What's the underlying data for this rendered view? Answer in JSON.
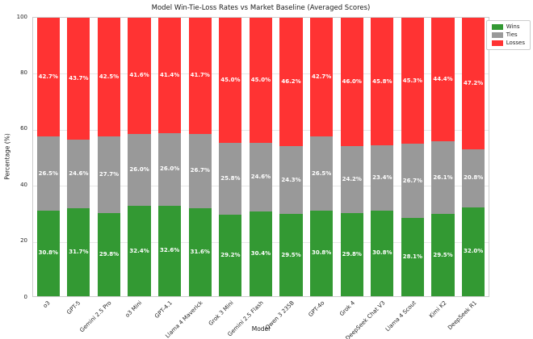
{
  "title": "Model Win-Tie-Loss Rates vs Market Baseline (Averaged Scores)",
  "chart_data": {
    "type": "bar",
    "stacked": true,
    "title": "Model Win-Tie-Loss Rates vs Market Baseline (Averaged Scores)",
    "xlabel": "Model",
    "ylabel": "Percentage (%)",
    "ylim": [
      0,
      100
    ],
    "y_ticks": [
      0,
      20,
      40,
      60,
      80,
      100
    ],
    "grid": true,
    "legend_position": "outside-top-right",
    "bar_label_format": "one_decimal_percent",
    "categories": [
      "o3",
      "GPT-5",
      "Gemini 2.5 Pro",
      "o3 Mini",
      "GPT-4.1",
      "Llama 4 Maverick",
      "Grok 3 Mini",
      "Gemini 2.5 Flash",
      "Qwen 3 235B",
      "GPT-4o",
      "Grok 4",
      "DeepSeek Chat V3",
      "Llama 4 Scout",
      "Kimi K2",
      "DeepSeek R1"
    ],
    "series": [
      {
        "name": "Wins",
        "color": "#339933",
        "values": [
          30.8,
          31.7,
          29.8,
          32.4,
          32.6,
          31.6,
          29.2,
          30.4,
          29.5,
          30.8,
          29.8,
          30.8,
          28.1,
          29.5,
          32.0
        ]
      },
      {
        "name": "Ties",
        "color": "#999999",
        "values": [
          26.5,
          24.6,
          27.7,
          26.0,
          26.0,
          26.7,
          25.8,
          24.6,
          24.3,
          26.5,
          24.2,
          23.4,
          26.7,
          26.1,
          20.8
        ]
      },
      {
        "name": "Losses",
        "color": "#ff3333",
        "values": [
          42.7,
          43.7,
          42.5,
          41.6,
          41.4,
          41.7,
          45.0,
          45.0,
          46.2,
          42.7,
          46.0,
          45.8,
          45.3,
          44.4,
          47.2
        ]
      }
    ]
  },
  "legend": {
    "items": [
      {
        "label": "Wins",
        "color": "#339933"
      },
      {
        "label": "Ties",
        "color": "#999999"
      },
      {
        "label": "Losses",
        "color": "#ff3333"
      }
    ]
  }
}
